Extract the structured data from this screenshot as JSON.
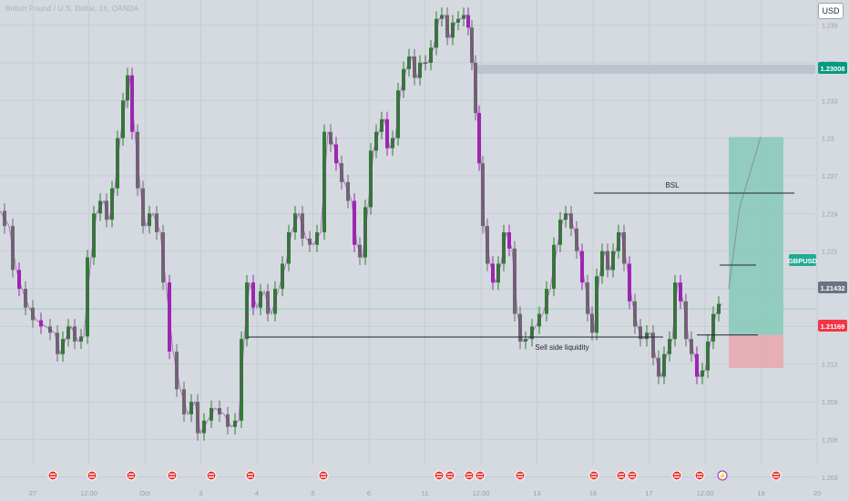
{
  "header": {
    "symbol_title": "British Pound / U.S. Dollar, 1h, OANDA",
    "currency_label": "USD"
  },
  "chart_data": {
    "type": "candlestick",
    "symbol": "GBPUSD",
    "interval": "1h",
    "ylim": [
      1.204,
      1.241
    ],
    "y_ticks": [
      1.239,
      1.236,
      1.233,
      1.23,
      1.227,
      1.224,
      1.221,
      1.218,
      1.215,
      1.212,
      1.209,
      1.206,
      1.203
    ],
    "x_labels": [
      "27",
      "12:00",
      "Oct",
      "3",
      "4",
      "5",
      "6",
      "11",
      "12:00",
      "13",
      "16",
      "17",
      "12:00",
      "19",
      "20"
    ],
    "price_badges": [
      {
        "value": "1.23008",
        "color": "#089981",
        "text_color": "#ffffff"
      },
      {
        "value": "GBPUSD",
        "color": "#22ab94",
        "text_color": "#ffffff"
      },
      {
        "value": "1.21432",
        "color": "#6b7280",
        "text_color": "#ffffff"
      },
      {
        "value": "1.21169",
        "color": "#f23645",
        "text_color": "#ffffff"
      }
    ],
    "price_path": [
      [
        0,
        1.2242
      ],
      [
        10,
        1.223
      ],
      [
        18,
        1.2195
      ],
      [
        24,
        1.218
      ],
      [
        32,
        1.2165
      ],
      [
        40,
        1.2155
      ],
      [
        50,
        1.215
      ],
      [
        60,
        1.2145
      ],
      [
        66,
        1.2128
      ],
      [
        72,
        1.214
      ],
      [
        78,
        1.215
      ],
      [
        86,
        1.2138
      ],
      [
        92,
        1.2142
      ],
      [
        100,
        1.2205
      ],
      [
        106,
        1.224
      ],
      [
        114,
        1.225
      ],
      [
        120,
        1.2235
      ],
      [
        126,
        1.226
      ],
      [
        132,
        1.23
      ],
      [
        138,
        1.233
      ],
      [
        142,
        1.235
      ],
      [
        148,
        1.2305
      ],
      [
        154,
        1.226
      ],
      [
        160,
        1.223
      ],
      [
        168,
        1.224
      ],
      [
        176,
        1.2225
      ],
      [
        182,
        1.2185
      ],
      [
        190,
        1.213
      ],
      [
        198,
        1.21
      ],
      [
        206,
        1.208
      ],
      [
        214,
        1.209
      ],
      [
        220,
        1.2065
      ],
      [
        228,
        1.2075
      ],
      [
        236,
        1.2085
      ],
      [
        246,
        1.208
      ],
      [
        254,
        1.207
      ],
      [
        262,
        1.2075
      ],
      [
        268,
        1.214
      ],
      [
        274,
        1.2185
      ],
      [
        282,
        1.2165
      ],
      [
        290,
        1.2178
      ],
      [
        298,
        1.216
      ],
      [
        306,
        1.218
      ],
      [
        314,
        1.22
      ],
      [
        320,
        1.2225
      ],
      [
        328,
        1.224
      ],
      [
        336,
        1.222
      ],
      [
        344,
        1.2215
      ],
      [
        352,
        1.2225
      ],
      [
        360,
        1.2305
      ],
      [
        366,
        1.2295
      ],
      [
        372,
        1.228
      ],
      [
        378,
        1.2265
      ],
      [
        386,
        1.225
      ],
      [
        392,
        1.2215
      ],
      [
        398,
        1.2205
      ],
      [
        404,
        1.2245
      ],
      [
        410,
        1.229
      ],
      [
        416,
        1.2305
      ],
      [
        422,
        1.2315
      ],
      [
        428,
        1.2292
      ],
      [
        434,
        1.23
      ],
      [
        440,
        1.2338
      ],
      [
        446,
        1.2355
      ],
      [
        452,
        1.2365
      ],
      [
        458,
        1.2348
      ],
      [
        464,
        1.236
      ],
      [
        470,
        1.236
      ],
      [
        476,
        1.2372
      ],
      [
        482,
        1.2395
      ],
      [
        488,
        1.2398
      ],
      [
        494,
        1.238
      ],
      [
        500,
        1.2392
      ],
      [
        506,
        1.2395
      ],
      [
        512,
        1.2398
      ],
      [
        516,
        1.2388
      ],
      [
        520,
        1.236
      ],
      [
        524,
        1.232
      ],
      [
        528,
        1.228
      ],
      [
        532,
        1.223
      ],
      [
        538,
        1.22
      ],
      [
        544,
        1.2185
      ],
      [
        550,
        1.22
      ],
      [
        556,
        1.2225
      ],
      [
        562,
        1.2212
      ],
      [
        568,
        1.216
      ],
      [
        574,
        1.2138
      ],
      [
        580,
        1.214
      ],
      [
        588,
        1.215
      ],
      [
        596,
        1.216
      ],
      [
        604,
        1.218
      ],
      [
        612,
        1.2215
      ],
      [
        618,
        1.2235
      ],
      [
        624,
        1.224
      ],
      [
        630,
        1.2228
      ],
      [
        636,
        1.221
      ],
      [
        642,
        1.2185
      ],
      [
        648,
        1.216
      ],
      [
        652,
        1.2145
      ],
      [
        658,
        1.219
      ],
      [
        664,
        1.221
      ],
      [
        670,
        1.2195
      ],
      [
        676,
        1.221
      ],
      [
        682,
        1.2225
      ],
      [
        688,
        1.22
      ],
      [
        694,
        1.217
      ],
      [
        700,
        1.215
      ],
      [
        706,
        1.214
      ],
      [
        714,
        1.2145
      ],
      [
        720,
        1.2125
      ],
      [
        726,
        1.211
      ],
      [
        732,
        1.2128
      ],
      [
        738,
        1.214
      ],
      [
        744,
        1.2185
      ],
      [
        750,
        1.217
      ],
      [
        756,
        1.214
      ],
      [
        762,
        1.2128
      ],
      [
        768,
        1.211
      ],
      [
        774,
        1.2115
      ],
      [
        780,
        1.2138
      ],
      [
        786,
        1.216
      ],
      [
        792,
        1.2168
      ]
    ],
    "zones": {
      "resistance_zone": [
        1.23,
        1.2304
      ],
      "take_profit_zone": [
        1.21432,
        1.23008
      ],
      "stop_loss_zone": [
        1.21169,
        1.21432
      ],
      "current_price": 1.2164
    },
    "annotations": [
      {
        "label": "BSL",
        "price": 1.2235
      },
      {
        "label": "Sell side liquidity",
        "price": 1.211
      }
    ],
    "event_markers": [
      {
        "type": "flag"
      },
      {
        "type": "flag"
      },
      {
        "type": "flag"
      },
      {
        "type": "flag"
      },
      {
        "type": "flag"
      },
      {
        "type": "flag"
      },
      {
        "type": "flag"
      },
      {
        "type": "flag"
      },
      {
        "type": "flag"
      },
      {
        "type": "flag"
      },
      {
        "type": "flag"
      },
      {
        "type": "flag"
      },
      {
        "type": "flag"
      },
      {
        "type": "flag"
      },
      {
        "type": "flag"
      },
      {
        "type": "flag"
      },
      {
        "type": "flag"
      },
      {
        "type": "bolt"
      },
      {
        "type": "flag"
      }
    ],
    "colors": {
      "background": "#d5d9e0",
      "up_candle": "#2e7d32",
      "down_candle": "#6b6b6b",
      "accent_candle": "#9c27b0",
      "grid": "#c8ccd4",
      "tp_fill": "#86c9b9",
      "sl_fill": "#e9a7ae",
      "zone_fill": "#b9bec8",
      "text": "#1f2933",
      "axis_text": "#9aa0aa"
    }
  }
}
